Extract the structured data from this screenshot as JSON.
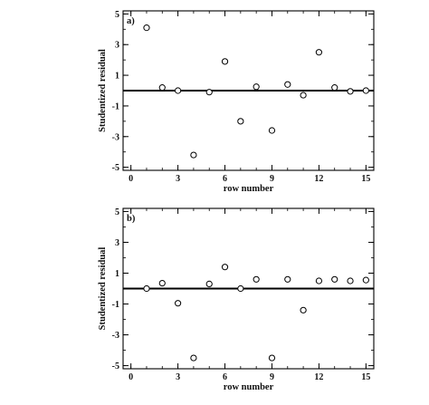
{
  "chart_data": [
    {
      "type": "scatter",
      "panel_label": "a)",
      "xlabel": "row number",
      "ylabel": "Studentized residual",
      "xlim": [
        -0.5,
        15.5
      ],
      "ylim": [
        -5.2,
        5.2
      ],
      "xticks": [
        0,
        3,
        6,
        9,
        12,
        15
      ],
      "yticks": [
        5,
        3,
        1,
        -1,
        -3,
        -5
      ],
      "x_minor_step": 1,
      "y_minor_step": 1,
      "reference_line": 0,
      "marker": "open-circle",
      "x": [
        1,
        2,
        3,
        4,
        5,
        6,
        7,
        8,
        9,
        10,
        11,
        12,
        13,
        14,
        15
      ],
      "y": [
        4.1,
        0.2,
        0.0,
        -4.2,
        -0.1,
        1.9,
        -2.0,
        0.25,
        -2.6,
        0.4,
        -0.3,
        2.5,
        0.2,
        -0.05,
        0.0
      ]
    },
    {
      "type": "scatter",
      "panel_label": "b)",
      "xlabel": "row number",
      "ylabel": "Studentized residual",
      "xlim": [
        -0.5,
        15.5
      ],
      "ylim": [
        -5.2,
        5.2
      ],
      "xticks": [
        0,
        3,
        6,
        9,
        12,
        15
      ],
      "yticks": [
        5,
        3,
        1,
        -1,
        -3,
        -5
      ],
      "x_minor_step": 1,
      "y_minor_step": 1,
      "reference_line": 0,
      "marker": "open-circle",
      "x": [
        1,
        2,
        3,
        4,
        5,
        6,
        7,
        8,
        9,
        10,
        11,
        12,
        13,
        14,
        15
      ],
      "y": [
        0.0,
        0.35,
        -0.95,
        -4.5,
        0.3,
        1.4,
        0.0,
        0.6,
        -4.5,
        0.6,
        -1.4,
        0.5,
        0.6,
        0.5,
        0.55
      ]
    }
  ]
}
